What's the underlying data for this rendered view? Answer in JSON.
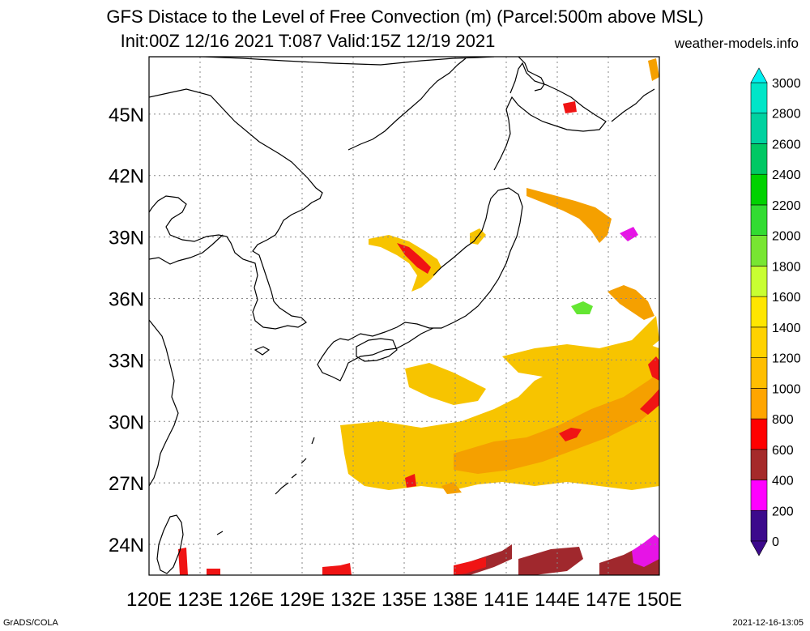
{
  "titles": {
    "line1": "GFS Distace to the Level of Free Convection (m) (Parcel:500m above MSL)",
    "line2": "Init:00Z 12/16 2021 T:087 Valid:15Z 12/19 2021",
    "source": "weather-models.info"
  },
  "footer": {
    "left": "GrADS/COLA",
    "right": "2021-12-16-13:05"
  },
  "map": {
    "lon_range": [
      120,
      150
    ],
    "lat_range": [
      22.5,
      47.8
    ],
    "lon_ticks": [
      "120E",
      "123E",
      "126E",
      "129E",
      "132E",
      "135E",
      "138E",
      "141E",
      "144E",
      "147E",
      "150E"
    ],
    "lat_ticks": [
      "24N",
      "27N",
      "30N",
      "33N",
      "36N",
      "39N",
      "42N",
      "45N"
    ],
    "gridlines": true
  },
  "colorbar": {
    "levels": [
      "0",
      "200",
      "400",
      "600",
      "800",
      "1000",
      "1200",
      "1400",
      "1600",
      "1800",
      "2000",
      "2200",
      "2400",
      "2600",
      "2800",
      "3000"
    ],
    "colors": [
      "#3c0a8c",
      "#ff00ff",
      "#a52a2a",
      "#ff0000",
      "#ffa500",
      "#ffbe00",
      "#ffd200",
      "#ffe600",
      "#c8ff32",
      "#78e632",
      "#32dc32",
      "#00d200",
      "#00c864",
      "#00d2a0",
      "#00e6c8",
      "#00f0f0"
    ]
  },
  "features": {
    "field_colors": {
      "low": "#a0282d",
      "red": "#f01414",
      "orange": "#f5a000",
      "yellow": "#f7c400",
      "green": "#64e632",
      "magenta": "#e614e6"
    }
  }
}
